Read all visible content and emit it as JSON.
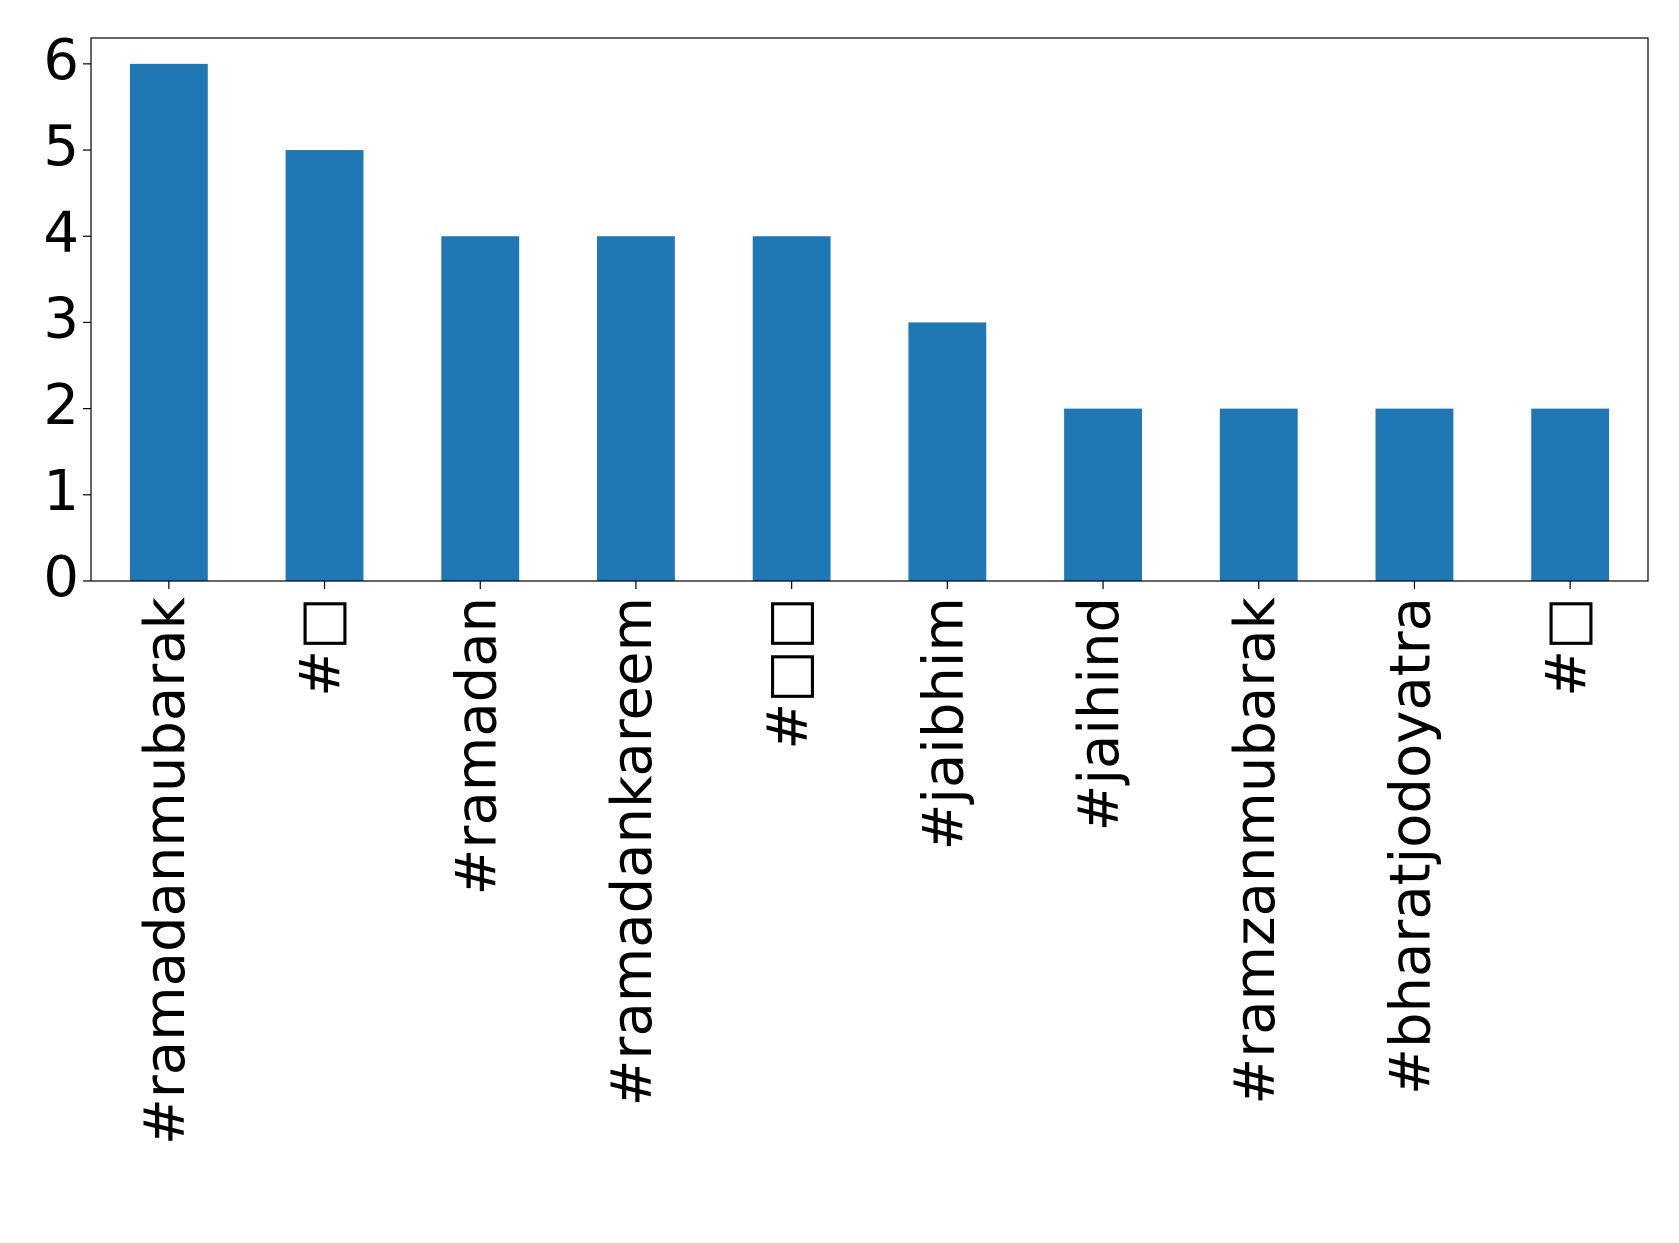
{
  "chart_data": {
    "type": "bar",
    "categories": [
      "#ramadanmubarak",
      "#□",
      "#ramadan",
      "#ramadankareem",
      "#□□",
      "#jaibhim",
      "#jaihind",
      "#ramzanmubarak",
      "#bharatjodoyatra",
      "#□"
    ],
    "values": [
      6,
      5,
      4,
      4,
      4,
      3,
      2,
      2,
      2,
      2
    ],
    "color": "#1f77b4",
    "ylim": [
      0,
      6.3
    ],
    "yticks": [
      0,
      1,
      2,
      3,
      4,
      5,
      6
    ],
    "grid": false
  }
}
